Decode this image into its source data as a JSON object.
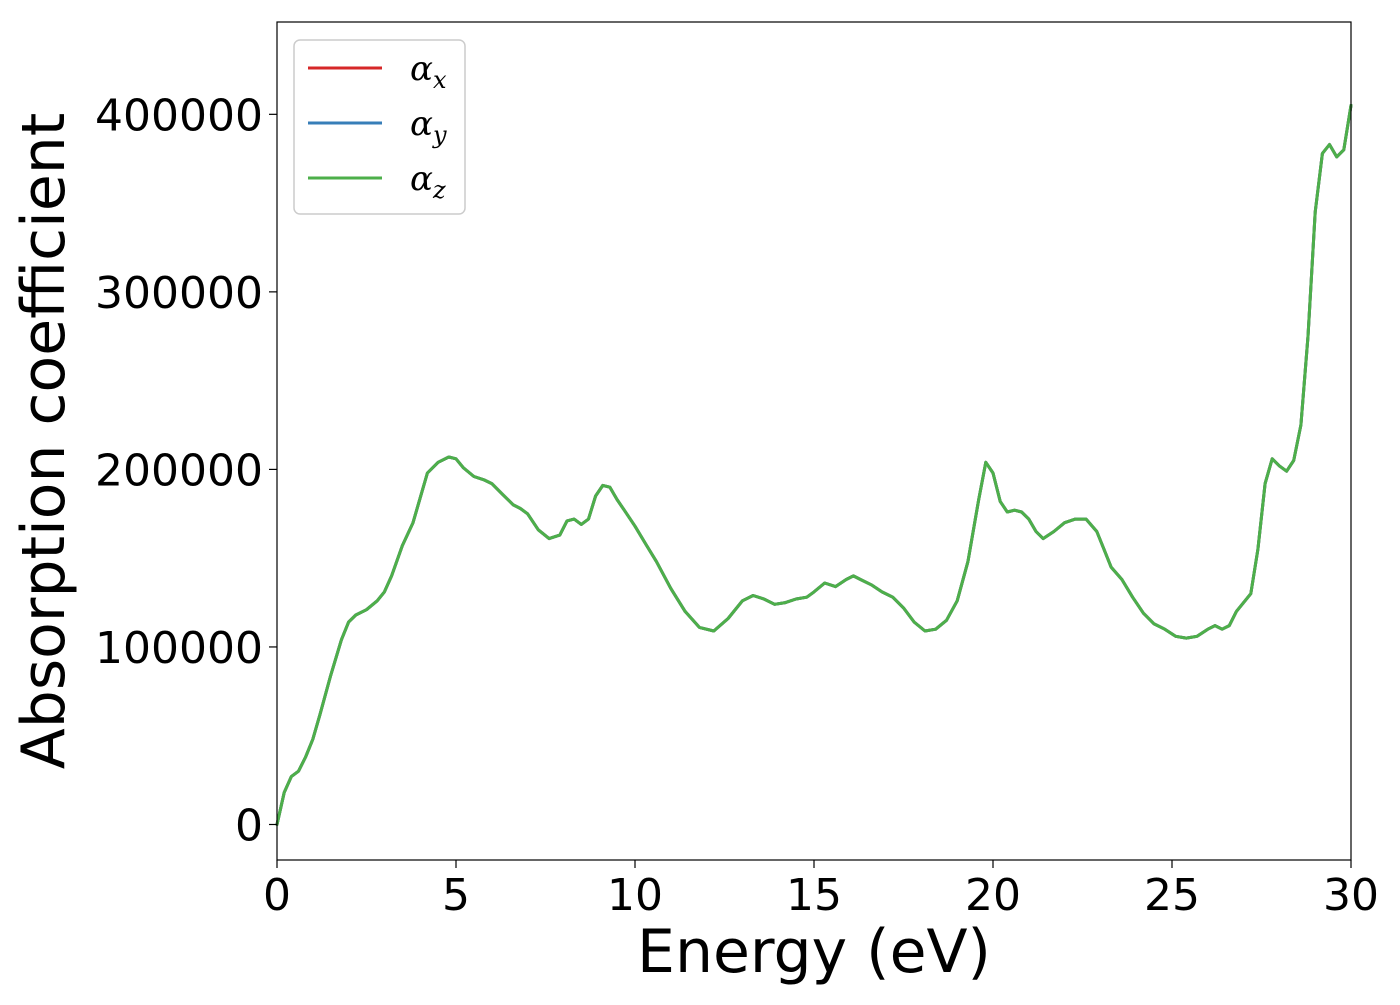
{
  "chart_data": {
    "type": "line",
    "title": "",
    "xlabel": "Energy (eV)",
    "ylabel": "Absorption coefficient",
    "xlim": [
      0,
      30
    ],
    "ylim": [
      -20000,
      452000
    ],
    "xticks": [
      0,
      5,
      10,
      15,
      20,
      25,
      30
    ],
    "xtick_labels": [
      "0",
      "5",
      "10",
      "15",
      "20",
      "25",
      "30"
    ],
    "yticks": [
      0,
      100000,
      200000,
      300000,
      400000
    ],
    "ytick_labels": [
      "0",
      "100000",
      "200000",
      "300000",
      "400000"
    ],
    "grid": false,
    "legend_position": "top-left",
    "x": [
      0,
      0.2,
      0.4,
      0.6,
      0.8,
      1.0,
      1.2,
      1.5,
      1.8,
      2.0,
      2.2,
      2.5,
      2.8,
      3.0,
      3.2,
      3.5,
      3.8,
      4.0,
      4.2,
      4.5,
      4.8,
      5.0,
      5.2,
      5.5,
      5.8,
      6.0,
      6.3,
      6.6,
      6.8,
      7.0,
      7.3,
      7.6,
      7.9,
      8.1,
      8.3,
      8.5,
      8.7,
      8.9,
      9.1,
      9.3,
      9.5,
      9.7,
      10.0,
      10.3,
      10.6,
      11.0,
      11.4,
      11.8,
      12.2,
      12.6,
      13.0,
      13.3,
      13.6,
      13.9,
      14.2,
      14.5,
      14.8,
      15.0,
      15.3,
      15.6,
      15.9,
      16.1,
      16.3,
      16.6,
      16.9,
      17.2,
      17.5,
      17.8,
      18.1,
      18.4,
      18.7,
      19.0,
      19.3,
      19.6,
      19.8,
      20.0,
      20.2,
      20.4,
      20.6,
      20.8,
      21.0,
      21.2,
      21.4,
      21.7,
      22.0,
      22.3,
      22.6,
      22.9,
      23.1,
      23.3,
      23.6,
      23.9,
      24.2,
      24.5,
      24.8,
      25.1,
      25.4,
      25.7,
      26.0,
      26.2,
      26.4,
      26.6,
      26.8,
      27.0,
      27.2,
      27.4,
      27.6,
      27.8,
      28.0,
      28.2,
      28.4,
      28.6,
      28.8,
      29.0,
      29.2,
      29.4,
      29.6,
      29.8,
      30.0
    ],
    "series": [
      {
        "name": "α_x",
        "color": "#d62728",
        "values": [
          0,
          18000,
          27000,
          30000,
          38000,
          48000,
          62000,
          84000,
          104000,
          114000,
          118000,
          121000,
          126000,
          131000,
          140000,
          157000,
          170000,
          184000,
          198000,
          204000,
          207000,
          206000,
          201000,
          196000,
          194000,
          192000,
          186000,
          180000,
          178000,
          175000,
          166000,
          161000,
          163000,
          171000,
          172000,
          169000,
          172000,
          185000,
          191000,
          190000,
          183000,
          177000,
          168000,
          158000,
          148000,
          133000,
          120000,
          111000,
          109000,
          116000,
          126000,
          129000,
          127000,
          124000,
          125000,
          127000,
          128000,
          131000,
          136000,
          134000,
          138000,
          140000,
          138000,
          135000,
          131000,
          128000,
          122000,
          114000,
          109000,
          110000,
          115000,
          126000,
          148000,
          183000,
          204000,
          198000,
          182000,
          176000,
          177000,
          176000,
          172000,
          165000,
          161000,
          165000,
          170000,
          172000,
          172000,
          165000,
          155000,
          145000,
          138000,
          128000,
          119000,
          113000,
          110000,
          106000,
          105000,
          106000,
          110000,
          112000,
          110000,
          112000,
          120000,
          125000,
          130000,
          155000,
          192000,
          206000,
          202000,
          199000,
          205000,
          225000,
          275000,
          345000,
          378000,
          383000,
          376000,
          380000,
          405000
        ]
      },
      {
        "name": "α_y",
        "color": "#377eb8",
        "values": [
          0,
          18000,
          27000,
          30000,
          38000,
          48000,
          62000,
          84000,
          104000,
          114000,
          118000,
          121000,
          126000,
          131000,
          140000,
          157000,
          170000,
          184000,
          198000,
          204000,
          207000,
          206000,
          201000,
          196000,
          194000,
          192000,
          186000,
          180000,
          178000,
          175000,
          166000,
          161000,
          163000,
          171000,
          172000,
          169000,
          172000,
          185000,
          191000,
          190000,
          183000,
          177000,
          168000,
          158000,
          148000,
          133000,
          120000,
          111000,
          109000,
          116000,
          126000,
          129000,
          127000,
          124000,
          125000,
          127000,
          128000,
          131000,
          136000,
          134000,
          138000,
          140000,
          138000,
          135000,
          131000,
          128000,
          122000,
          114000,
          109000,
          110000,
          115000,
          126000,
          148000,
          183000,
          204000,
          198000,
          182000,
          176000,
          177000,
          176000,
          172000,
          165000,
          161000,
          165000,
          170000,
          172000,
          172000,
          165000,
          155000,
          145000,
          138000,
          128000,
          119000,
          113000,
          110000,
          106000,
          105000,
          106000,
          110000,
          112000,
          110000,
          112000,
          120000,
          125000,
          130000,
          155000,
          192000,
          206000,
          202000,
          199000,
          205000,
          225000,
          275000,
          345000,
          378000,
          383000,
          376000,
          380000,
          405000
        ]
      },
      {
        "name": "α_z",
        "color": "#4daf4a",
        "values": [
          0,
          18000,
          27000,
          30000,
          38000,
          48000,
          62000,
          84000,
          104000,
          114000,
          118000,
          121000,
          126000,
          131000,
          140000,
          157000,
          170000,
          184000,
          198000,
          204000,
          207000,
          206000,
          201000,
          196000,
          194000,
          192000,
          186000,
          180000,
          178000,
          175000,
          166000,
          161000,
          163000,
          171000,
          172000,
          169000,
          172000,
          185000,
          191000,
          190000,
          183000,
          177000,
          168000,
          158000,
          148000,
          133000,
          120000,
          111000,
          109000,
          116000,
          126000,
          129000,
          127000,
          124000,
          125000,
          127000,
          128000,
          131000,
          136000,
          134000,
          138000,
          140000,
          138000,
          135000,
          131000,
          128000,
          122000,
          114000,
          109000,
          110000,
          115000,
          126000,
          148000,
          183000,
          204000,
          198000,
          182000,
          176000,
          177000,
          176000,
          172000,
          165000,
          161000,
          165000,
          170000,
          172000,
          172000,
          165000,
          155000,
          145000,
          138000,
          128000,
          119000,
          113000,
          110000,
          106000,
          105000,
          106000,
          110000,
          112000,
          110000,
          112000,
          120000,
          125000,
          130000,
          155000,
          192000,
          206000,
          202000,
          199000,
          205000,
          225000,
          275000,
          345000,
          378000,
          383000,
          376000,
          380000,
          405000
        ]
      }
    ],
    "legend": [
      {
        "symbol": "α",
        "sub": "x",
        "color": "#d62728"
      },
      {
        "symbol": "α",
        "sub": "y",
        "color": "#377eb8"
      },
      {
        "symbol": "α",
        "sub": "z",
        "color": "#4daf4a"
      }
    ]
  }
}
